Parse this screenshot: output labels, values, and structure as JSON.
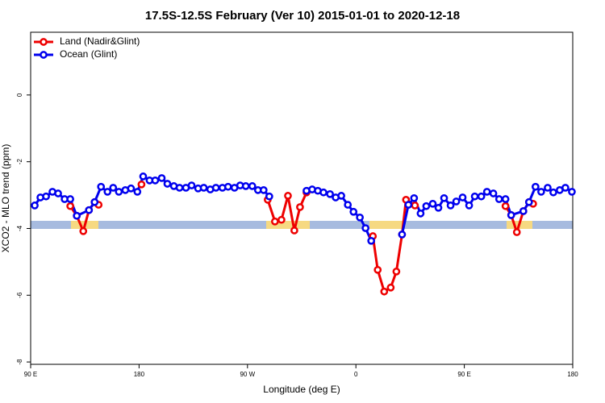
{
  "chart_data": {
    "type": "line",
    "title": "17.5S-12.5S February (Ver 10)   2015-01-01 to 2020-12-18",
    "xlabel": "Longitude (deg E)",
    "ylabel": "XCO2 - MLO trend (ppm)",
    "xlim": [
      90,
      540
    ],
    "ylim": [
      -8.07,
      1.88
    ],
    "xticks": [
      {
        "value": 90,
        "label": "90 E"
      },
      180,
      {
        "value": 270,
        "label": "90 W"
      },
      {
        "value": 360,
        "label": "0"
      },
      {
        "value": 450,
        "label": "90 E"
      },
      {
        "value": 540,
        "label": "180"
      }
    ],
    "yticks": [
      0,
      -2,
      -4,
      -6,
      -8
    ],
    "legend": "upper left",
    "series": [
      {
        "name": "Land (Nadir&Glint)",
        "color": "#ee0000",
        "x": [
          122.9,
          128.3,
          133.7,
          138.4,
          143.1,
          146.4,
          null,
          182.0,
          null,
          286.8,
          292.8,
          298.2,
          303.6,
          308.9,
          313.6,
          319.0,
          null,
          374.1,
          378.1,
          383.5,
          388.9,
          393.6,
          398.3,
          401.6,
          409.0,
          null,
          484.2,
          488.9,
          493.6,
          499.0,
          503.7,
          507.1
        ],
        "values": [
          -3.33,
          -3.62,
          -4.08,
          -3.45,
          -3.21,
          -3.29,
          null,
          -2.68,
          null,
          -3.14,
          -3.79,
          -3.74,
          -3.02,
          -4.06,
          -3.36,
          -2.92,
          null,
          -4.23,
          -5.24,
          -5.89,
          -5.77,
          -5.29,
          -4.18,
          -3.14,
          -3.31,
          null,
          -3.33,
          -3.6,
          -4.11,
          -3.48,
          -3.21,
          -3.26
        ]
      },
      {
        "name": "Ocean (Glint)",
        "color": "#0000ee",
        "x": [
          93.4,
          98.1,
          102.8,
          108.1,
          112.8,
          118.2,
          122.9,
          128.3,
          138.4,
          143.1,
          148.4,
          153.8,
          158.5,
          163.2,
          168.6,
          173.3,
          178.6,
          183.4,
          188.7,
          193.4,
          198.8,
          203.5,
          208.9,
          213.6,
          218.9,
          223.6,
          229.0,
          233.7,
          239.1,
          243.8,
          249.2,
          253.9,
          259.2,
          263.9,
          268.6,
          274.0,
          278.7,
          283.4,
          288.1,
          null,
          319.0,
          323.7,
          328.4,
          333.1,
          338.5,
          343.2,
          347.9,
          353.3,
          358.0,
          363.3,
          368.0,
          372.7,
          null,
          398.3,
          403.6,
          408.3,
          413.7,
          418.4,
          423.8,
          428.5,
          433.2,
          438.6,
          443.3,
          448.6,
          454.0,
          458.7,
          464.1,
          468.8,
          474.1,
          478.9,
          484.2,
          488.9,
          499.0,
          503.7,
          509.1,
          513.8,
          519.2,
          523.9,
          529.2,
          533.9,
          539.3
        ],
        "values": [
          -3.31,
          -3.07,
          -3.04,
          -2.9,
          -2.95,
          -3.12,
          -3.12,
          -3.62,
          -3.45,
          -3.21,
          -2.75,
          -2.9,
          -2.78,
          -2.9,
          -2.85,
          -2.8,
          -2.9,
          -2.44,
          -2.56,
          -2.56,
          -2.49,
          -2.66,
          -2.73,
          -2.78,
          -2.78,
          -2.71,
          -2.8,
          -2.78,
          -2.83,
          -2.78,
          -2.78,
          -2.75,
          -2.78,
          -2.71,
          -2.73,
          -2.73,
          -2.85,
          -2.85,
          -3.04,
          null,
          -2.87,
          -2.83,
          -2.87,
          -2.92,
          -2.97,
          -3.07,
          -3.02,
          -3.29,
          -3.5,
          -3.67,
          -3.99,
          -4.37,
          null,
          -4.18,
          -3.29,
          -3.09,
          -3.55,
          -3.33,
          -3.26,
          -3.38,
          -3.09,
          -3.31,
          -3.19,
          -3.07,
          -3.31,
          -3.04,
          -3.04,
          -2.9,
          -2.95,
          -3.12,
          -3.12,
          -3.6,
          -3.48,
          -3.21,
          -2.75,
          -2.9,
          -2.78,
          -2.92,
          -2.85,
          -2.78,
          -2.9
        ]
      }
    ]
  }
}
